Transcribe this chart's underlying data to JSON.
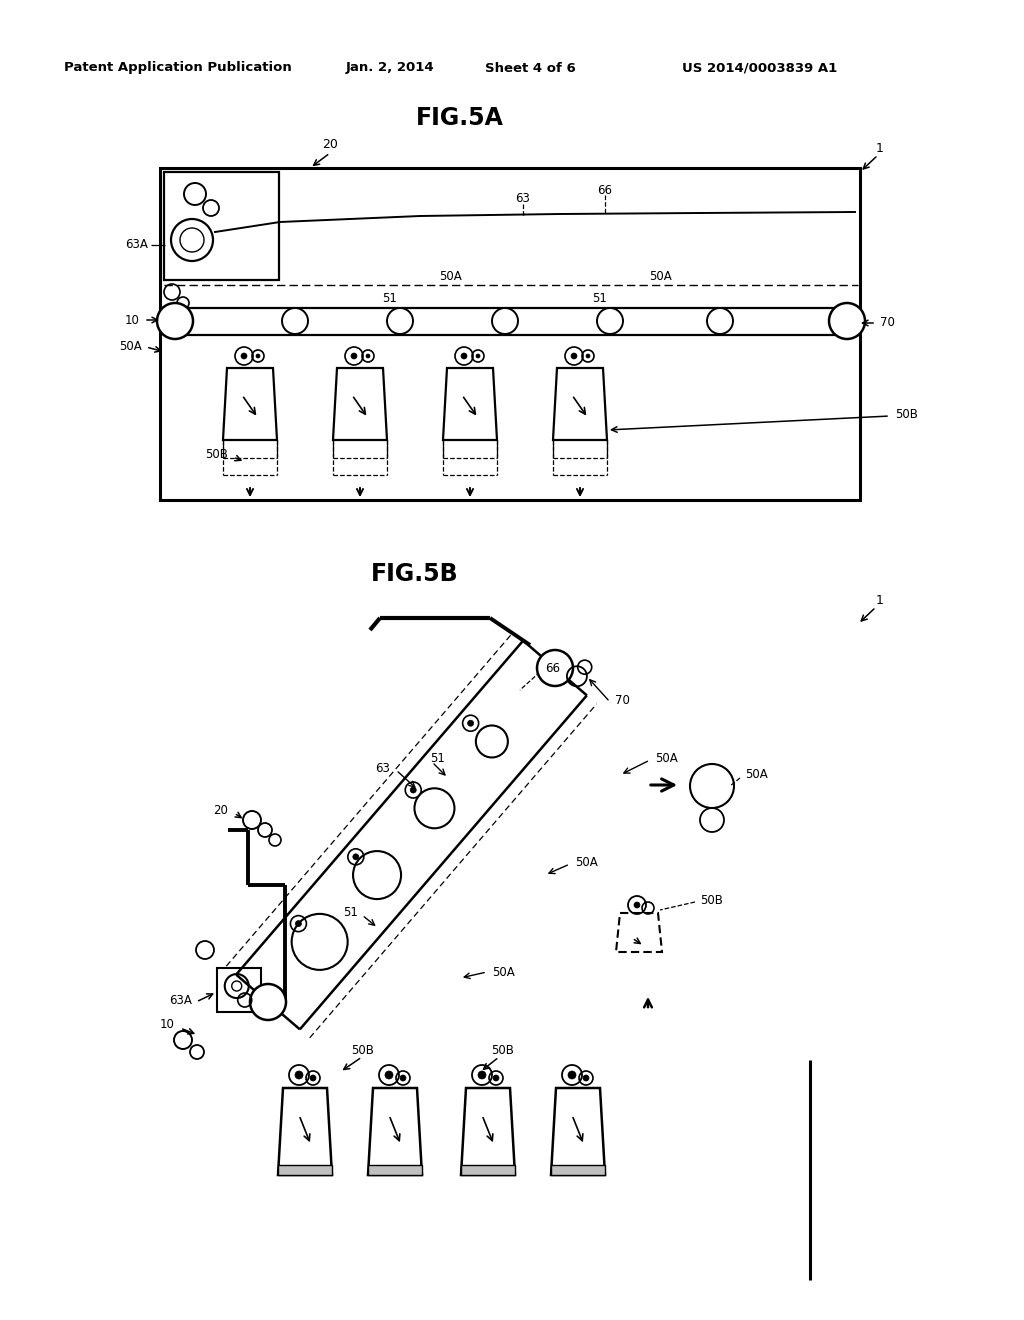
{
  "bg_color": "#ffffff",
  "header_text": "Patent Application Publication",
  "header_date": "Jan. 2, 2014",
  "header_sheet": "Sheet 4 of 6",
  "header_patent": "US 2014/0003839 A1",
  "fig5a_title": "FIG.5A",
  "fig5b_title": "FIG.5B",
  "line_color": "#000000",
  "label_color": "#000000"
}
